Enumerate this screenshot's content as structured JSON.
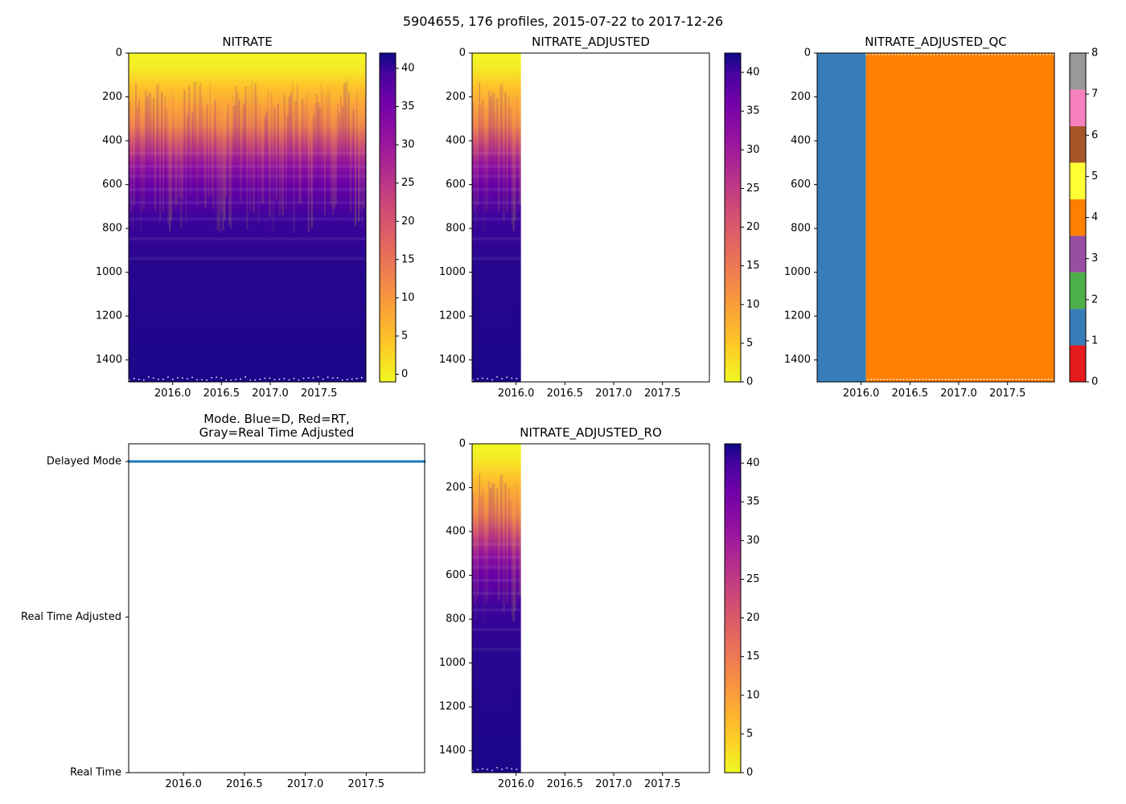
{
  "suptitle": "5904655, 176 profiles, 2015-07-22 to 2017-12-26",
  "chart_data": [
    {
      "id": "nitrate",
      "type": "heatmap",
      "title": "NITRATE",
      "xlim": [
        2015.55,
        2017.98
      ],
      "ylim": [
        1500,
        0
      ],
      "xticks": [
        2016.0,
        2016.5,
        2017.0,
        2017.5
      ],
      "xtick_labels": [
        "2016.0",
        "2016.5",
        "2017.0",
        "2017.5"
      ],
      "yticks": [
        0,
        200,
        400,
        600,
        800,
        1000,
        1200,
        1400
      ],
      "ytick_labels": [
        "0",
        "200",
        "400",
        "600",
        "800",
        "1000",
        "1200",
        "1400"
      ],
      "colormap": "plasma_r",
      "data_x_range": [
        2015.55,
        2017.98
      ],
      "colorbar": {
        "vmin": -1,
        "vmax": 42,
        "ticks": [
          0,
          5,
          10,
          15,
          20,
          25,
          30,
          35,
          40
        ],
        "tick_labels": [
          "0",
          "5",
          "10",
          "15",
          "20",
          "25",
          "30",
          "35",
          "40"
        ]
      }
    },
    {
      "id": "nitrate_adjusted",
      "type": "heatmap",
      "title": "NITRATE_ADJUSTED",
      "xlim": [
        2015.55,
        2017.98
      ],
      "ylim": [
        1500,
        0
      ],
      "xticks": [
        2016.0,
        2016.5,
        2017.0,
        2017.5
      ],
      "xtick_labels": [
        "2016.0",
        "2016.5",
        "2017.0",
        "2017.5"
      ],
      "yticks": [
        0,
        200,
        400,
        600,
        800,
        1000,
        1200,
        1400
      ],
      "ytick_labels": [
        "0",
        "200",
        "400",
        "600",
        "800",
        "1000",
        "1200",
        "1400"
      ],
      "colormap": "plasma_r",
      "data_x_range": [
        2015.55,
        2016.05
      ],
      "colorbar": {
        "vmin": 0,
        "vmax": 42.5,
        "ticks": [
          0,
          5,
          10,
          15,
          20,
          25,
          30,
          35,
          40
        ],
        "tick_labels": [
          "0",
          "5",
          "10",
          "15",
          "20",
          "25",
          "30",
          "35",
          "40"
        ]
      }
    },
    {
      "id": "nitrate_adjusted_qc",
      "type": "heatmap",
      "title": "NITRATE_ADJUSTED_QC",
      "xlim": [
        2015.55,
        2017.98
      ],
      "ylim": [
        1500,
        0
      ],
      "xticks": [
        2016.0,
        2016.5,
        2017.0,
        2017.5
      ],
      "xtick_labels": [
        "2016.0",
        "2016.5",
        "2017.0",
        "2017.5"
      ],
      "yticks": [
        0,
        200,
        400,
        600,
        800,
        1000,
        1200,
        1400
      ],
      "ytick_labels": [
        "0",
        "200",
        "400",
        "600",
        "800",
        "1000",
        "1200",
        "1400"
      ],
      "regions": [
        {
          "x_from": 2015.55,
          "x_to": 2016.05,
          "qc": 1,
          "color": "#377eb8"
        },
        {
          "x_from": 2016.05,
          "x_to": 2017.98,
          "qc": 4,
          "color": "#ff7f00"
        }
      ],
      "colorbar": {
        "vmin": 0,
        "vmax": 8,
        "ticks": [
          0,
          1,
          2,
          3,
          4,
          5,
          6,
          7,
          8
        ],
        "tick_labels": [
          "0",
          "1",
          "2",
          "3",
          "4",
          "5",
          "6",
          "7",
          "8"
        ],
        "segments": [
          "#e41a1c",
          "#377eb8",
          "#4daf4a",
          "#984ea3",
          "#ff7f00",
          "#ffff33",
          "#a65628",
          "#f781bf",
          "#999999"
        ]
      }
    },
    {
      "id": "mode",
      "type": "scatter",
      "title": "Mode. Blue=D, Red=RT,\nGray=Real Time Adjusted",
      "title_lines": [
        "Mode. Blue=D, Red=RT,",
        "Gray=Real Time Adjusted"
      ],
      "xlim": [
        2015.55,
        2017.98
      ],
      "xticks": [
        2016.0,
        2016.5,
        2017.0,
        2017.5
      ],
      "xtick_labels": [
        "2016.0",
        "2016.5",
        "2017.0",
        "2017.5"
      ],
      "ytick_labels": [
        "Delayed Mode",
        "Real Time Adjusted",
        "Real Time"
      ],
      "series": [
        {
          "name": "Delayed Mode",
          "color": "#1f77b4",
          "x_range": [
            2015.55,
            2017.98
          ],
          "y_level": "Delayed Mode",
          "count": 176
        }
      ]
    },
    {
      "id": "nitrate_adjusted_ro",
      "type": "heatmap",
      "title": "NITRATE_ADJUSTED_RO",
      "xlim": [
        2015.55,
        2017.98
      ],
      "ylim": [
        1500,
        0
      ],
      "xticks": [
        2016.0,
        2016.5,
        2017.0,
        2017.5
      ],
      "xtick_labels": [
        "2016.0",
        "2016.5",
        "2017.0",
        "2017.5"
      ],
      "yticks": [
        0,
        200,
        400,
        600,
        800,
        1000,
        1200,
        1400
      ],
      "ytick_labels": [
        "0",
        "200",
        "400",
        "600",
        "800",
        "1000",
        "1200",
        "1400"
      ],
      "colormap": "plasma_r",
      "data_x_range": [
        2015.55,
        2016.05
      ],
      "colorbar": {
        "vmin": 0,
        "vmax": 42.5,
        "ticks": [
          0,
          5,
          10,
          15,
          20,
          25,
          30,
          35,
          40
        ],
        "tick_labels": [
          "0",
          "5",
          "10",
          "15",
          "20",
          "25",
          "30",
          "35",
          "40"
        ]
      }
    }
  ]
}
